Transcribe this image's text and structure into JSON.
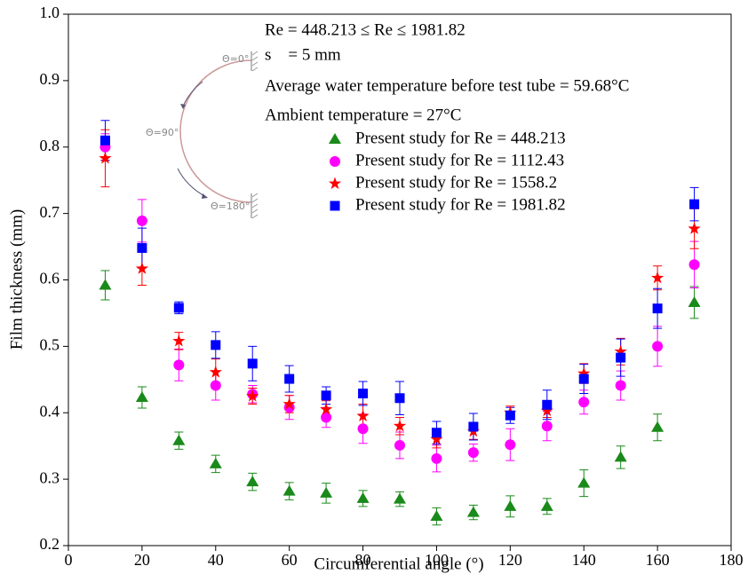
{
  "chart_data": {
    "type": "scatter",
    "x_label": "Circumferential angle (°)",
    "y_label": "Film thickness (mm)",
    "x": [
      10,
      20,
      30,
      40,
      50,
      60,
      70,
      80,
      90,
      100,
      110,
      120,
      130,
      140,
      150,
      160,
      170
    ],
    "series": [
      {
        "name": "Present study for Re = 448.213",
        "color": "#1a8a1a",
        "marker": "triangle",
        "values": [
          0.592,
          0.423,
          0.358,
          0.323,
          0.296,
          0.282,
          0.279,
          0.271,
          0.27,
          0.244,
          0.25,
          0.259,
          0.259,
          0.294,
          0.333,
          0.378,
          0.566
        ],
        "errors": [
          0.022,
          0.016,
          0.013,
          0.013,
          0.013,
          0.013,
          0.015,
          0.012,
          0.011,
          0.013,
          0.011,
          0.016,
          0.012,
          0.02,
          0.017,
          0.02,
          0.024
        ]
      },
      {
        "name": "Present study for Re = 1112.43",
        "color": "#ff00ff",
        "marker": "circle",
        "values": [
          0.8,
          0.689,
          0.472,
          0.441,
          0.428,
          0.408,
          0.393,
          0.376,
          0.351,
          0.331,
          0.34,
          0.352,
          0.38,
          0.416,
          0.441,
          0.5,
          0.623
        ],
        "errors": [
          0.02,
          0.032,
          0.024,
          0.022,
          0.013,
          0.018,
          0.015,
          0.022,
          0.02,
          0.02,
          0.013,
          0.024,
          0.022,
          0.018,
          0.022,
          0.03,
          0.035
        ]
      },
      {
        "name": "Present study for Re = 1558.2",
        "color": "#ff0000",
        "marker": "star",
        "values": [
          0.783,
          0.617,
          0.508,
          0.461,
          0.425,
          0.413,
          0.405,
          0.395,
          0.38,
          0.36,
          0.372,
          0.4,
          0.403,
          0.459,
          0.492,
          0.603,
          0.677
        ],
        "errors": [
          0.043,
          0.025,
          0.013,
          0.02,
          0.012,
          0.013,
          0.013,
          0.018,
          0.013,
          0.013,
          0.012,
          0.01,
          0.01,
          0.015,
          0.02,
          0.018,
          0.03
        ]
      },
      {
        "name": "Present study for Re = 1981.82",
        "color": "#0000ff",
        "marker": "square",
        "values": [
          0.81,
          0.648,
          0.558,
          0.502,
          0.474,
          0.451,
          0.426,
          0.429,
          0.422,
          0.37,
          0.379,
          0.396,
          0.412,
          0.451,
          0.483,
          0.557,
          0.714
        ],
        "errors": [
          0.03,
          0.03,
          0.009,
          0.02,
          0.026,
          0.02,
          0.013,
          0.018,
          0.025,
          0.017,
          0.02,
          0.012,
          0.022,
          0.022,
          0.028,
          0.03,
          0.025
        ]
      }
    ],
    "xlim": [
      0,
      180
    ],
    "xticks": [
      0,
      20,
      40,
      60,
      80,
      100,
      120,
      140,
      160,
      180
    ],
    "ylim": [
      0.2,
      1.0
    ],
    "yticks": [
      0.2,
      0.3,
      0.4,
      0.5,
      0.6,
      0.7,
      0.8,
      0.9,
      {
        "value": 1.0,
        "label": "1.0"
      }
    ],
    "annotations": [
      "Re = 448.213 ≤ Re ≤ 1981.82",
      "s    = 5 mm",
      "Average water temperature before test tube = 59.68°C",
      "Ambient temperature = 27°C"
    ],
    "inset_labels": [
      "Θ=0°",
      "Θ=90°",
      "Θ=180°"
    ],
    "legend": "upper right"
  }
}
